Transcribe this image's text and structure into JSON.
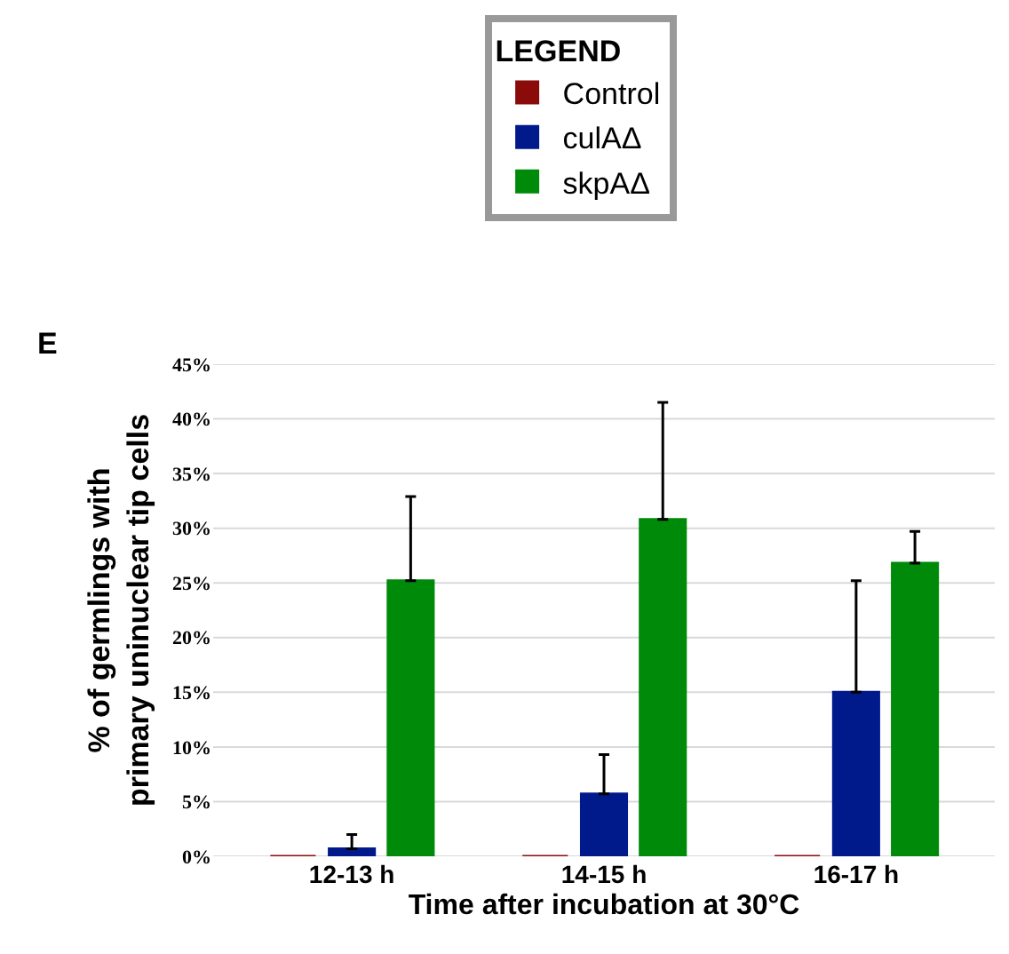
{
  "chart_data": {
    "type": "bar",
    "categories": [
      "12-13 h",
      "14-15 h",
      "16-17 h"
    ],
    "series": [
      {
        "name": "Control",
        "color": "#8b0a0a",
        "values": [
          0,
          0,
          0
        ]
      },
      {
        "name": "culAΔ",
        "color": "#001a8c",
        "values": [
          0.7,
          5.7,
          15
        ],
        "errors": [
          [
            0.7,
            2
          ],
          [
            5.7,
            9.3
          ],
          [
            15,
            25.2
          ]
        ]
      },
      {
        "name": "skpAΔ",
        "color": "#008a0a",
        "values": [
          25.2,
          30.8,
          26.8
        ],
        "errors": [
          [
            25.2,
            32.9
          ],
          [
            30.8,
            41.5
          ],
          [
            26.8,
            29.7
          ]
        ]
      }
    ],
    "legend_title": "LEGEND",
    "legend": "top",
    "xlabel": "Time after incubation at 30°C",
    "ylabel": "% of germlings with\nprimary uninuclear tip cells",
    "ylim": [
      0,
      45
    ],
    "yticks": [
      {
        "value": 0,
        "label": "0%"
      },
      {
        "value": 5,
        "label": "5%"
      },
      {
        "value": 10,
        "label": "10%"
      },
      {
        "value": 15,
        "label": "15%"
      },
      {
        "value": 20,
        "label": "20%"
      },
      {
        "value": 25,
        "label": "25%"
      },
      {
        "value": 30,
        "label": "30%"
      },
      {
        "value": 35,
        "label": "35%"
      },
      {
        "value": 40,
        "label": "40%"
      },
      {
        "value": 45,
        "label": "45%"
      }
    ],
    "grid": "y",
    "annotations": [
      "E"
    ]
  }
}
